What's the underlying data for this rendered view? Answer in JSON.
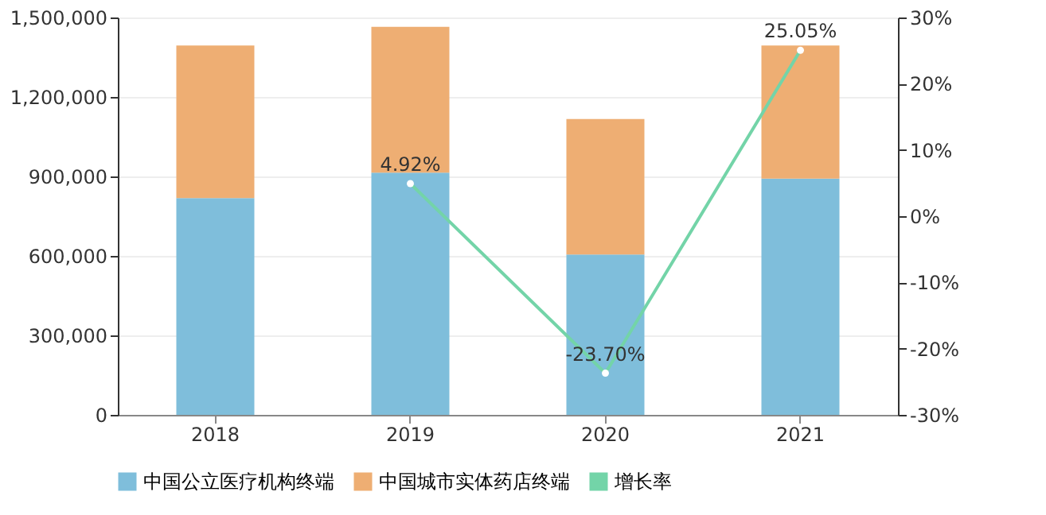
{
  "chart_data": {
    "type": "bar",
    "stacked": true,
    "categories": [
      "2018",
      "2019",
      "2020",
      "2021"
    ],
    "series": [
      {
        "name": "中国公立医疗机构终端",
        "color": "#7fbedb",
        "values": [
          818000,
          914000,
          605000,
          892000
        ]
      },
      {
        "name": "中国城市实体药店终端",
        "color": "#eeae73",
        "values": [
          576000,
          551000,
          512000,
          502000
        ]
      },
      {
        "name": "增长率",
        "type": "line",
        "axis": "y2",
        "color": "#73d4a8",
        "marker": "circle",
        "values": [
          null,
          4.92,
          -23.7,
          25.05
        ],
        "value_labels": [
          null,
          "4.92%",
          "-23.70%",
          "25.05%"
        ]
      }
    ],
    "ylim": [
      0,
      1500000
    ],
    "yticks": [
      {
        "value": 0,
        "label": "0"
      },
      {
        "value": 300000,
        "label": "300,000"
      },
      {
        "value": 600000,
        "label": "600,000"
      },
      {
        "value": 900000,
        "label": "900,000"
      },
      {
        "value": 1200000,
        "label": "1,200,000"
      },
      {
        "value": 1500000,
        "label": "1,500,000"
      }
    ],
    "y2lim": [
      -30,
      30
    ],
    "y2ticks": [
      {
        "value": -30,
        "label": "-30%"
      },
      {
        "value": -20,
        "label": "-20%"
      },
      {
        "value": -10,
        "label": "-10%"
      },
      {
        "value": 0,
        "label": "0%"
      },
      {
        "value": 10,
        "label": "10%"
      },
      {
        "value": 20,
        "label": "20%"
      },
      {
        "value": 30,
        "label": "30%"
      }
    ],
    "grid": "y",
    "legend": "bottom"
  }
}
